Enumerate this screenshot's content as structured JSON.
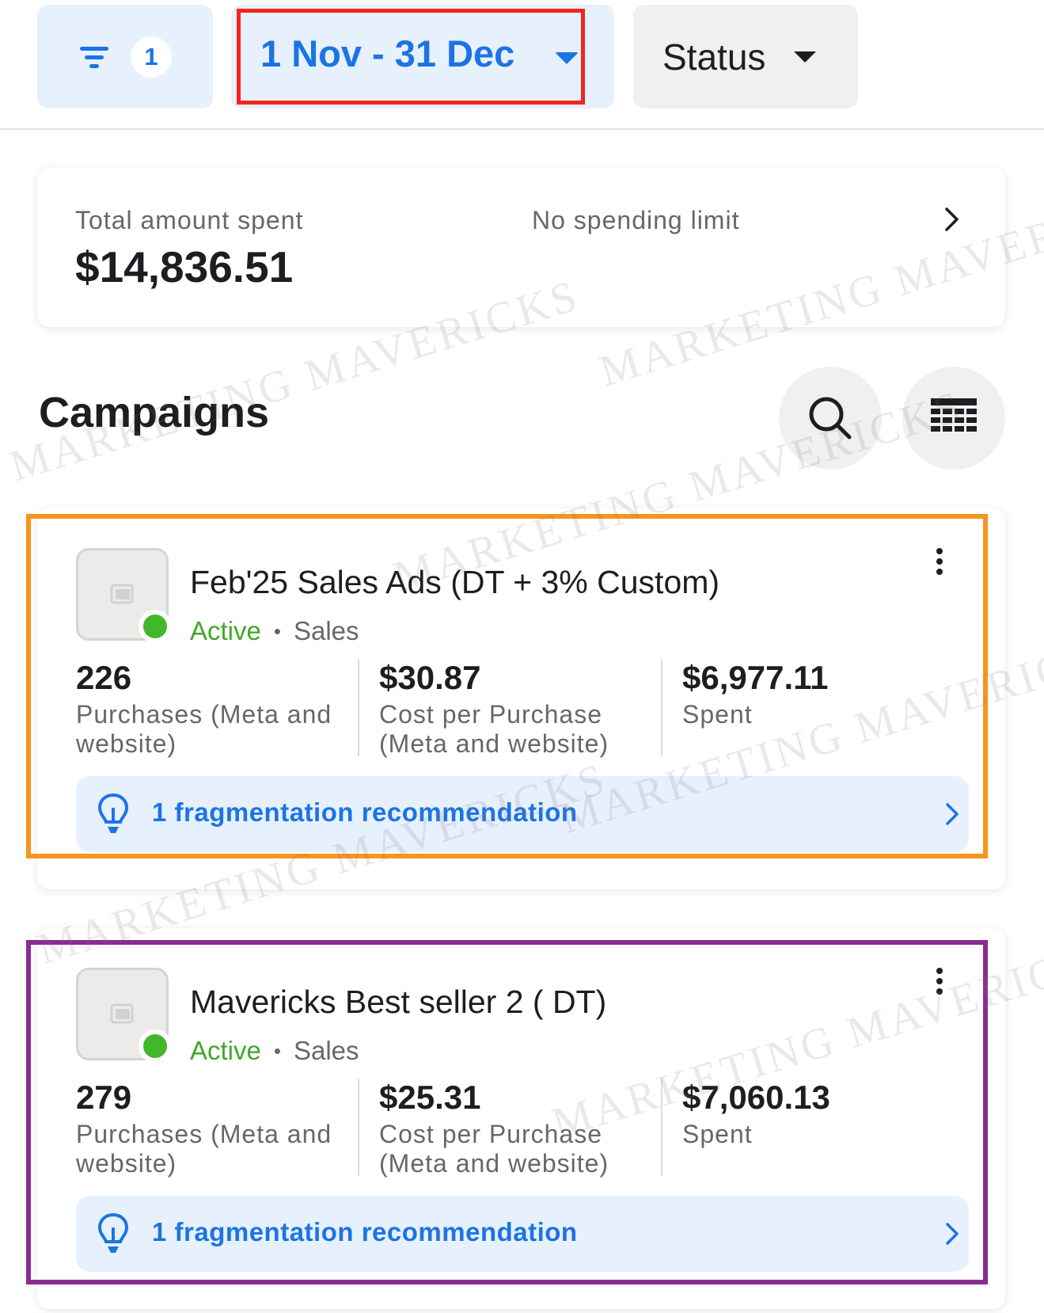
{
  "toolbar": {
    "filter_count": "1",
    "date_range": "1 Nov - 31 Dec",
    "status_label": "Status"
  },
  "summary": {
    "total_label": "Total amount spent",
    "total_value": "$14,836.51",
    "limit_label": "No spending limit"
  },
  "campaigns_section": {
    "title": "Campaigns"
  },
  "campaigns": [
    {
      "name": "Feb'25 Sales Ads (DT + 3% Custom)",
      "status": "Active",
      "objective": "Sales",
      "metrics": [
        {
          "value": "226",
          "label": "Purchases (Meta and website)"
        },
        {
          "value": "$30.87",
          "label": "Cost per Purchase (Meta and website)"
        },
        {
          "value": "$6,977.11",
          "label": "Spent"
        }
      ],
      "recommendation": "1 fragmentation recommendation"
    },
    {
      "name": "Mavericks Best seller 2 ( DT)",
      "status": "Active",
      "objective": "Sales",
      "metrics": [
        {
          "value": "279",
          "label": "Purchases (Meta and website)"
        },
        {
          "value": "$25.31",
          "label": "Cost per Purchase (Meta and website)"
        },
        {
          "value": "$7,060.13",
          "label": "Spent"
        }
      ],
      "recommendation": "1 fragmentation recommendation"
    }
  ],
  "watermark": "MARKETING MAVERICKS",
  "colors": {
    "accent": "#1b74e4",
    "active": "#42b72a",
    "highlight_date": "#f2261b",
    "highlight_card1": "#f7941d",
    "highlight_card2": "#8a2b91"
  },
  "icons": [
    "filter-icon",
    "caret-down-icon",
    "chevron-right-icon",
    "search-icon",
    "table-icon",
    "image-placeholder-icon",
    "more-vertical-icon",
    "lightbulb-icon"
  ]
}
